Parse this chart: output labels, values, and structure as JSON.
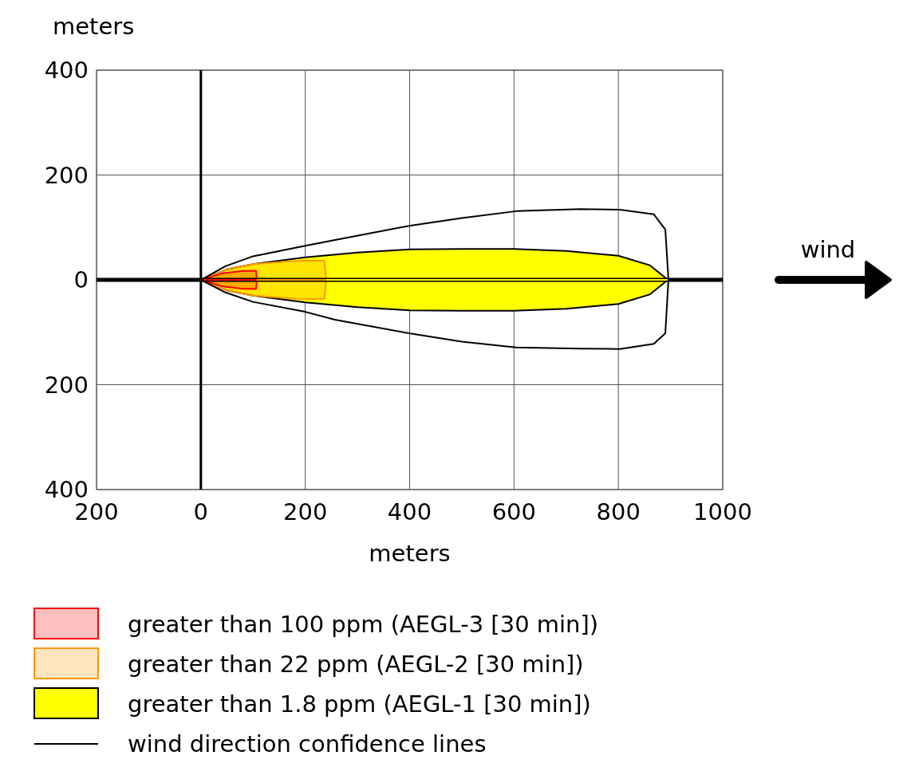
{
  "chart_data": {
    "type": "line",
    "xlabel": "meters",
    "ylabel": "meters",
    "xlim": [
      -200,
      1000
    ],
    "xticks": [
      {
        "value": -200,
        "label": "200"
      },
      0,
      200,
      400,
      600,
      800,
      1000
    ],
    "ylim": [
      -400,
      400
    ],
    "yticks": [
      400,
      200,
      0,
      {
        "value": -200,
        "label": "200"
      },
      {
        "value": -400,
        "label": "400"
      }
    ],
    "grid": true,
    "legend": "bottom",
    "annotations": [
      "wind",
      "wind direction confidence lines"
    ],
    "series": [
      {
        "name": "greater than 100 ppm (AEGL-3 [30 min])",
        "color": "#ff0000",
        "x": [
          0,
          40,
          80,
          106,
          107
        ],
        "values": [
          0,
          0,
          0,
          0,
          0
        ],
        "upper": [
          0,
          12,
          17,
          17,
          0
        ],
        "lower": [
          0,
          -12,
          -17,
          -17,
          0
        ]
      },
      {
        "name": "greater than 22 ppm (AEGL-2 [30 min])",
        "color": "#ff9900",
        "x": [
          0,
          50,
          100,
          150,
          200,
          237,
          240
        ],
        "values": [
          0,
          0,
          0,
          0,
          0,
          0,
          0
        ],
        "upper": [
          0,
          20,
          30,
          34,
          37,
          36,
          0
        ],
        "lower": [
          0,
          -20,
          -30,
          -34,
          -37,
          -36,
          0
        ]
      },
      {
        "name": "greater than 1.8 ppm (AEGL-1 [30 min])",
        "color": "#ffff00",
        "x": [
          0,
          50,
          100,
          200,
          300,
          400,
          500,
          600,
          700,
          800,
          860,
          895
        ],
        "values": [
          0,
          0,
          0,
          0,
          0,
          0,
          0,
          0,
          0,
          0,
          0,
          0
        ],
        "upper": [
          0,
          20,
          30,
          43,
          52,
          58,
          59,
          59,
          55,
          46,
          28,
          0
        ],
        "lower": [
          0,
          -20,
          -30,
          -43,
          -52,
          -58,
          -59,
          -59,
          -55,
          -46,
          -28,
          0
        ]
      }
    ]
  }
}
